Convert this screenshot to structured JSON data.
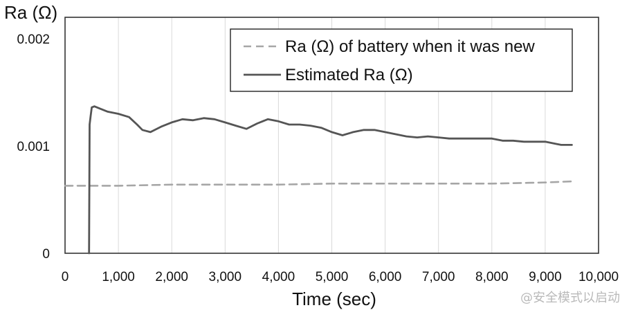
{
  "chart_data": {
    "type": "line",
    "title": "",
    "xlabel": "Time (sec)",
    "ylabel": "Ra (Ω)",
    "xlim": [
      0,
      10000
    ],
    "ylim": [
      0,
      0.0022
    ],
    "x_ticks": [
      0,
      1000,
      2000,
      3000,
      4000,
      5000,
      6000,
      7000,
      8000,
      9000,
      10000
    ],
    "x_tick_labels": [
      "0",
      "1,000",
      "2,000",
      "3,000",
      "4,000",
      "5,000",
      "6,000",
      "7,000",
      "8,000",
      "9,000",
      "10,000"
    ],
    "y_ticks": [
      0,
      0.001,
      0.002
    ],
    "y_tick_labels": [
      "0",
      "0.001",
      "0.002"
    ],
    "grid": "vertical",
    "legend_position": "top-right",
    "series": [
      {
        "name": "Ra (Ω) of battery when it was new",
        "style": "dashed",
        "color": "#a6a6a6",
        "x": [
          0,
          1000,
          2000,
          3000,
          4000,
          5000,
          6000,
          7000,
          8000,
          9000,
          9500
        ],
        "y": [
          0.00063,
          0.00063,
          0.00064,
          0.00064,
          0.00064,
          0.00065,
          0.00065,
          0.00065,
          0.00065,
          0.00066,
          0.00067
        ]
      },
      {
        "name": "Estimated Ra (Ω)",
        "style": "solid",
        "color": "#555555",
        "x": [
          450,
          460,
          480,
          500,
          550,
          650,
          800,
          1000,
          1200,
          1350,
          1450,
          1600,
          1800,
          2000,
          2200,
          2400,
          2600,
          2800,
          3000,
          3200,
          3400,
          3600,
          3800,
          4000,
          4200,
          4400,
          4600,
          4800,
          5000,
          5200,
          5400,
          5600,
          5800,
          6000,
          6200,
          6400,
          6600,
          6800,
          7000,
          7200,
          7400,
          7600,
          7800,
          8000,
          8200,
          8400,
          8600,
          8800,
          9000,
          9200,
          9300,
          9500
        ],
        "y": [
          0,
          0.0012,
          0.00128,
          0.00136,
          0.00137,
          0.00135,
          0.00132,
          0.0013,
          0.00127,
          0.0012,
          0.00115,
          0.00113,
          0.00118,
          0.00122,
          0.00125,
          0.00124,
          0.00126,
          0.00125,
          0.00122,
          0.00119,
          0.00116,
          0.00121,
          0.00125,
          0.00123,
          0.0012,
          0.0012,
          0.00119,
          0.00117,
          0.00113,
          0.0011,
          0.00113,
          0.00115,
          0.00115,
          0.00113,
          0.00111,
          0.00109,
          0.00108,
          0.00109,
          0.00108,
          0.00107,
          0.00107,
          0.00107,
          0.00107,
          0.00107,
          0.00105,
          0.00105,
          0.00104,
          0.00104,
          0.00104,
          0.00102,
          0.00101,
          0.00101
        ]
      }
    ]
  },
  "watermark": "@安全模式以启动"
}
